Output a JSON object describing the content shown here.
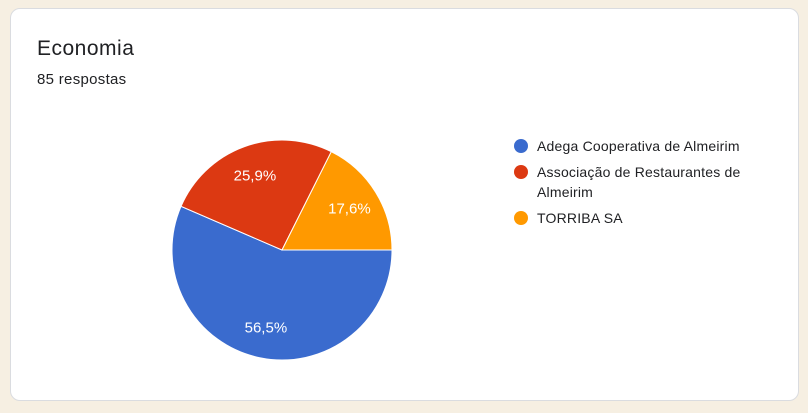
{
  "card": {
    "title": "Economia",
    "response_count": "85 respostas"
  },
  "theme": {
    "page_background": "#f6efe2",
    "card_background": "#ffffff",
    "card_border": "#dadce0",
    "text_color": "#202124",
    "slice_label_color": "#ffffff"
  },
  "chart_data": {
    "type": "pie",
    "title": "Economia",
    "subtitle": "85 respostas",
    "legend_position": "right",
    "start_angle_deg": 0,
    "direction": "clockwise",
    "slices": [
      {
        "label": "Adega Cooperativa de Almeirim",
        "value": 56.5,
        "display": "56,5%",
        "color": "#3a6bce"
      },
      {
        "label": "Associação de Restaurantes de Almeirim",
        "value": 25.9,
        "display": "25,9%",
        "color": "#dc3912"
      },
      {
        "label": "TORRIBA SA",
        "value": 17.6,
        "display": "17,6%",
        "color": "#ff9900"
      }
    ]
  }
}
